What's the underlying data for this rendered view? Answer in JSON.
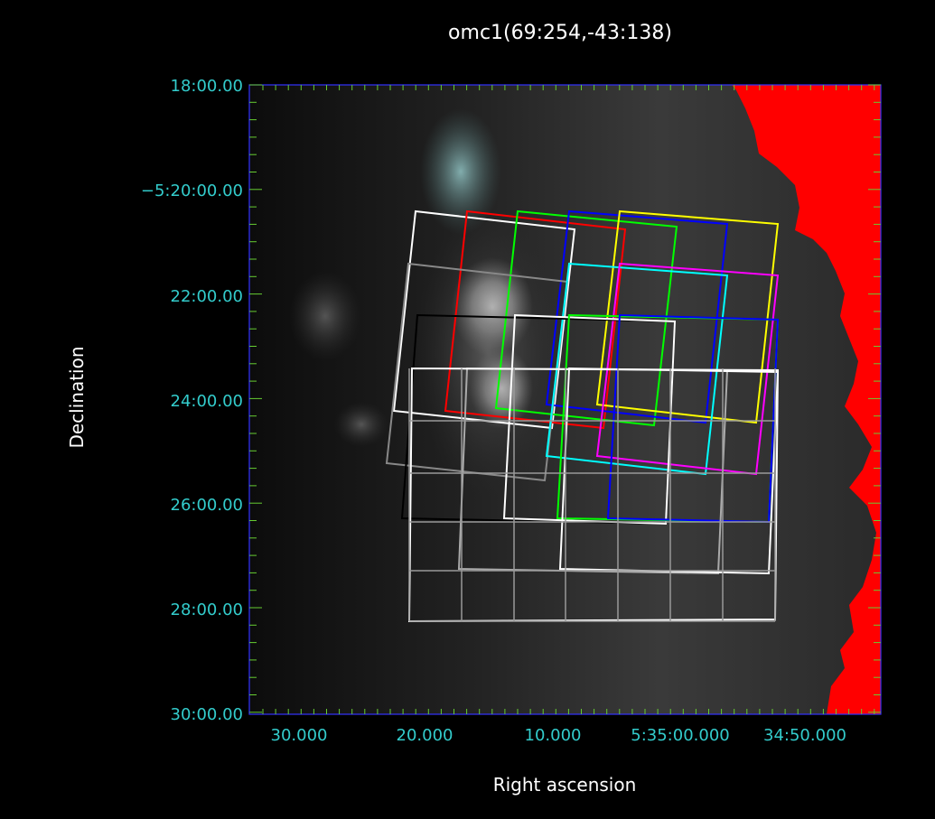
{
  "title": "omc1(69:254,-43:138)",
  "x_axis_label": "Right ascension",
  "y_axis_label": "Declination",
  "x_tick_labels": [
    "30.000",
    "20.000",
    "10.000",
    "5:35:00.000",
    "34:50.000"
  ],
  "y_tick_labels": [
    "18:00.00",
    "−5:20:00.00",
    "22:00.00",
    "24:00.00",
    "26:00.00",
    "28:00.00",
    "30:00.00"
  ],
  "colors": {
    "frame": "#3333ff",
    "ticks": "#66cc33",
    "tick_labels": "#33cccc",
    "nodata": "#ff0000"
  },
  "tile_colors": [
    "#ffffff",
    "#ff0000",
    "#00ff00",
    "#0000ff",
    "#ffff00",
    "#888888",
    "#00ffff",
    "#ff00ff",
    "#000000",
    "#ffffff",
    "#00ff00",
    "#0000ff",
    "#aaaaaa",
    "#ffffff"
  ]
}
